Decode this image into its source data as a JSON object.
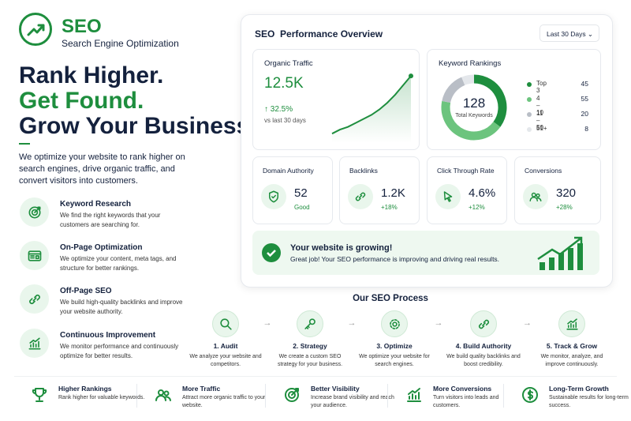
{
  "header": {
    "logo": "SEO",
    "tagline": "Search Engine Optimization"
  },
  "hero": {
    "headline": [
      "Rank Higher.",
      "Get Found.",
      "Grow Your Business."
    ],
    "description": "We optimize your website to rank higher on search engines, drive organic traffic, and convert visitors into customers."
  },
  "services": [
    {
      "title": "Keyword Research",
      "description": "We find the right keywords that your customers are searching for."
    },
    {
      "title": "On-Page Optimization",
      "description": "We optimize your content, meta tags, and structure for better rankings."
    },
    {
      "title": "Off-Page SEO",
      "description": "We build high-quality backlinks and improve your website authority."
    },
    {
      "title": "Continuous Improvement",
      "description": "We monitor performance and continuously optimize for better results."
    }
  ],
  "dashboard": {
    "title": "SEO  Performance Overview",
    "period": "Last 30 Days",
    "organic_traffic": {
      "label": "Organic Traffic",
      "value": "12.5K",
      "change": "32.5%",
      "comparison": "vs last 30 days",
      "trend": [
        8,
        14,
        18,
        24,
        30,
        36,
        44,
        54,
        66,
        80,
        94
      ]
    },
    "keyword_rankings": {
      "title": "Keyword Rankings",
      "total": 128,
      "total_label": "Total Keywords",
      "groups": [
        {
          "name": "Top 3",
          "count": 45,
          "color": "#1e8e3e"
        },
        {
          "name": "4 – 10",
          "count": 55,
          "color": "#6cc47e"
        },
        {
          "name": "11 – 50",
          "count": 20,
          "color": "#b9bec6"
        },
        {
          "name": "51+",
          "count": 8,
          "color": "#e4e7eb"
        }
      ]
    },
    "metrics": [
      {
        "label": "Domain Authority",
        "value": "52",
        "note": "Good"
      },
      {
        "label": "Backlinks",
        "value": "1.2K",
        "note": "+18%"
      },
      {
        "label": "Click Through Rate",
        "value": "4.6%",
        "note": "+12%"
      },
      {
        "label": "Conversions",
        "value": "320",
        "note": "+28%"
      }
    ],
    "banner": {
      "title": "Your website is growing!",
      "text": "Great job! Your SEO performance is improving and driving real results."
    }
  },
  "process": {
    "title": "Our SEO Process",
    "steps": [
      {
        "title": "1. Audit",
        "description": "We analyze your website and competitors."
      },
      {
        "title": "2. Strategy",
        "description": "We create a custom SEO strategy for your business."
      },
      {
        "title": "3. Optimize",
        "description": "We optimize your website for search engines."
      },
      {
        "title": "4. Build Authority",
        "description": "We build quality backlinks and boost credibility."
      },
      {
        "title": "5. Track & Grow",
        "description": "We monitor, analyze, and improve continuously."
      }
    ]
  },
  "benefits": [
    {
      "title": "Higher Rankings",
      "description": "Rank higher for valuable keywords."
    },
    {
      "title": "More Traffic",
      "description": "Attract more organic traffic to your website."
    },
    {
      "title": "Better Visibility",
      "description": "Increase brand visibility and reach your audience."
    },
    {
      "title": "More Conversions",
      "description": "Turn visitors into leads and customers."
    },
    {
      "title": "Long-Term Growth",
      "description": "Sustainable results for long-term success."
    }
  ]
}
